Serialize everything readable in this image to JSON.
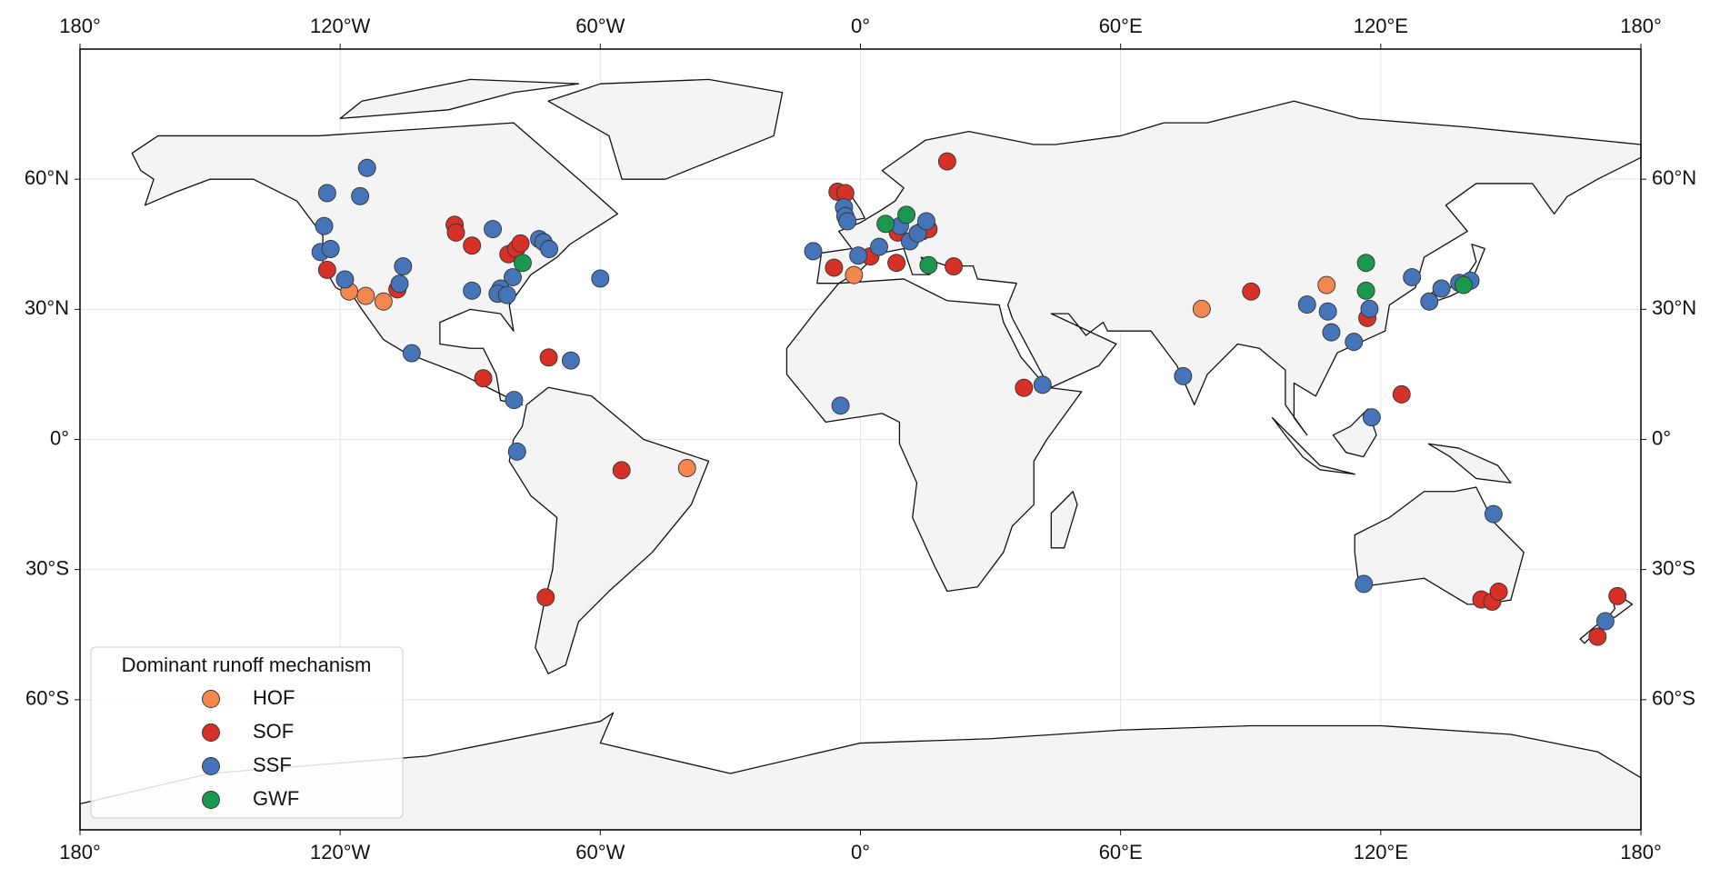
{
  "chart_data": {
    "type": "scatter",
    "legend_title": "Dominant runoff mechanism",
    "legend_position": "lower left",
    "grid": true,
    "xlim": [
      -180,
      180
    ],
    "ylim": [
      -90,
      90
    ],
    "xticks": [
      {
        "value": -180,
        "label": "180°"
      },
      {
        "value": -120,
        "label": "120°W"
      },
      {
        "value": -60,
        "label": "60°W"
      },
      {
        "value": 0,
        "label": "0°"
      },
      {
        "value": 60,
        "label": "60°E"
      },
      {
        "value": 120,
        "label": "120°E"
      },
      {
        "value": 180,
        "label": "180°"
      }
    ],
    "yticks": [
      {
        "value": -60,
        "label": "60°S"
      },
      {
        "value": -30,
        "label": "30°S"
      },
      {
        "value": 0,
        "label": "0°"
      },
      {
        "value": 30,
        "label": "30°N"
      },
      {
        "value": 60,
        "label": "60°N"
      }
    ],
    "series": [
      {
        "name": "HOF",
        "color": "#f4874d",
        "x": [
          -117.9,
          -114.1,
          -110,
          -1.5,
          78.7,
          107.5,
          -40
        ],
        "y": [
          34.1,
          33.1,
          31.8,
          37.9,
          30.1,
          35.6,
          -6.6
        ]
      },
      {
        "name": "SOF",
        "color": "#d73027",
        "x": [
          -123,
          -106.8,
          -93.6,
          -93.3,
          -89.6,
          -81.2,
          -79.4,
          -78.4,
          -71.9,
          -87,
          -55.1,
          -72.6,
          -5.3,
          -3.5,
          -6.1,
          2.3,
          8.3,
          8.6,
          14.2,
          15.7,
          21.5,
          20,
          37.7,
          90.1,
          116.9,
          124.8,
          143.2,
          145.7,
          147.2,
          170,
          174.6
        ],
        "y": [
          39.1,
          34.6,
          49.5,
          47.7,
          44.7,
          42.7,
          43.9,
          45.2,
          18.9,
          14.1,
          -7.1,
          -36.4,
          57.1,
          56.8,
          39.6,
          42.2,
          40.7,
          47.7,
          48,
          48.5,
          39.9,
          64.1,
          11.9,
          34.1,
          28,
          10.4,
          -36.9,
          -37.4,
          -35.1,
          -45.5,
          -36.1
        ]
      },
      {
        "name": "SSF",
        "color": "#4674b8",
        "x": [
          -123,
          -115.4,
          -113.8,
          -123.7,
          -124.5,
          -122.2,
          -118.9,
          -105.5,
          -106.3,
          -103.5,
          -89.6,
          -84.8,
          -80.2,
          -83,
          -83.7,
          -81.5,
          -74.1,
          -73.1,
          -71.8,
          -60,
          -66.8,
          -79.9,
          -79.2,
          -10.9,
          -3.8,
          -3.5,
          -3,
          -0.5,
          4.3,
          9.1,
          11.4,
          13.2,
          15.2,
          -4.6,
          42,
          74.4,
          103,
          107.8,
          108.6,
          113.8,
          117.4,
          117.9,
          127.2,
          131.2,
          134,
          138.1,
          140.7,
          146,
          116.1,
          171.8
        ],
        "y": [
          56.8,
          56.1,
          62.6,
          49.2,
          43.2,
          43.9,
          36.9,
          39.9,
          35.9,
          19.9,
          34.3,
          48.5,
          37.4,
          34.8,
          33.6,
          33.3,
          46.2,
          45.5,
          43.9,
          37.1,
          18.2,
          9.1,
          -2.8,
          43.4,
          53.5,
          51.5,
          50.3,
          42.4,
          44.4,
          49.2,
          45.7,
          47.5,
          50.3,
          7.8,
          12.6,
          14.6,
          31.1,
          29.5,
          24.7,
          22.5,
          30.1,
          5.1,
          37.4,
          31.8,
          34.8,
          36.1,
          36.6,
          -17.2,
          -33.3,
          -41.9
        ]
      },
      {
        "name": "GWF",
        "color": "#1a9850",
        "x": [
          -77.9,
          5.8,
          10.6,
          15.7,
          116.6,
          116.6,
          139.1
        ],
        "y": [
          40.7,
          49.7,
          51.8,
          40.2,
          40.7,
          34.3,
          35.6
        ]
      }
    ]
  }
}
